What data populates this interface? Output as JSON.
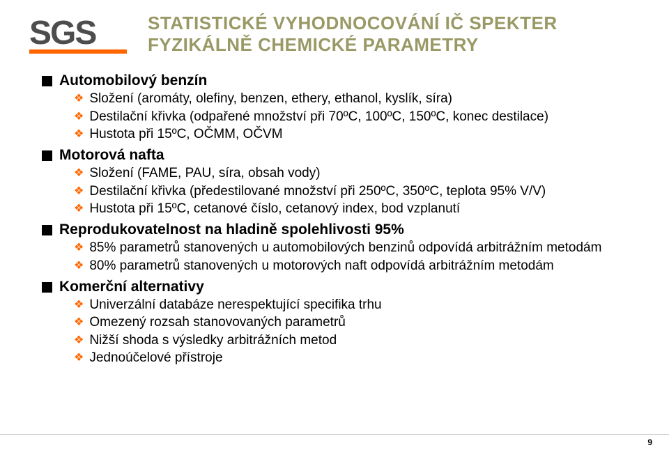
{
  "logo": {
    "text": "SGS"
  },
  "title": {
    "line1": "STATISTICKÉ VYHODNOCOVÁNÍ IČ SPEKTER",
    "line2": "FYZIKÁLNĚ CHEMICKÉ PARAMETRY"
  },
  "sections": [
    {
      "heading": "Automobilový benzín",
      "items": [
        "Složení (aromáty, olefiny, benzen, ethery, ethanol, kyslík, síra)",
        "Destilační křivka (odpařené množství při 70ºC, 100ºC, 150ºC, konec destilace)",
        "Hustota při 15ºC, OČMM, OČVM"
      ]
    },
    {
      "heading": "Motorová nafta",
      "items": [
        "Složení (FAME, PAU, síra, obsah vody)",
        "Destilační křivka (předestilované množství při 250ºC, 350ºC, teplota 95% V/V)",
        "Hustota při 15ºC, cetanové číslo, cetanový index, bod vzplanutí"
      ]
    },
    {
      "heading": "Reprodukovatelnost na hladině spolehlivosti 95%",
      "items": [
        "85% parametrů stanovených u automobilových benzinů odpovídá arbitrážním metodám",
        "80% parametrů stanovených u motorových naft odpovídá arbitrážním metodám"
      ]
    },
    {
      "heading": "Komerční alternativy",
      "items": [
        "Univerzální databáze nerespektující specifika trhu",
        "Omezený rozsah stanovovaných parametrů",
        "Nižší shoda s výsledky arbitrážních metod",
        "Jednoúčelové přístroje"
      ]
    }
  ],
  "pageNumber": "9",
  "colors": {
    "titleColor": "#999966",
    "accent": "#ff6600",
    "logoGray": "#4d4d4d"
  }
}
